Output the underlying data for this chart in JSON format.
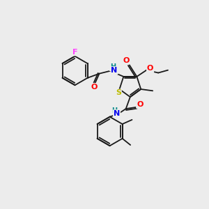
{
  "background_color": "#ececec",
  "atom_colors": {
    "F": "#ff44ff",
    "O": "#ff0000",
    "N": "#0000ee",
    "S": "#bbbb00",
    "H_label": "#008888",
    "C": "#000000"
  },
  "bond_color": "#1a1a1a",
  "figsize": [
    3.0,
    3.0
  ],
  "dpi": 100
}
